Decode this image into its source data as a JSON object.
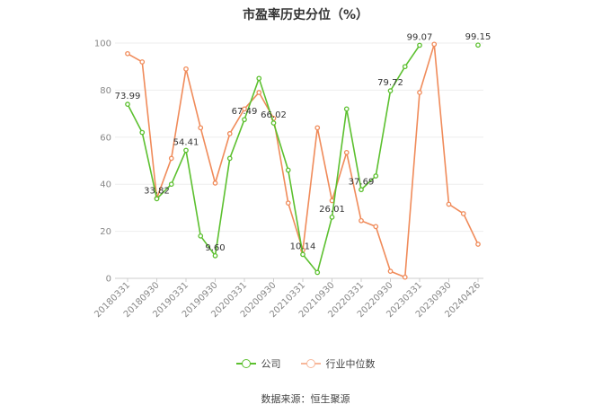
{
  "chart_data": {
    "type": "line",
    "title": "市盈率历史分位（%）",
    "ylim": [
      0,
      100
    ],
    "yticks": [
      0,
      20,
      40,
      60,
      80,
      100
    ],
    "grid": true,
    "legend_position": "bottom",
    "x_tick_labels": [
      "20180331",
      "20180930",
      "20190331",
      "20190930",
      "20200331",
      "20200930",
      "20210331",
      "20210930",
      "20220331",
      "20220930",
      "20230331",
      "20230930",
      "20240426"
    ],
    "x": [
      "20180331",
      "20180630",
      "20180930",
      "20181231",
      "20190331",
      "20190630",
      "20190930",
      "20191231",
      "20200331",
      "20200630",
      "20200930",
      "20201231",
      "20210331",
      "20210630",
      "20210930",
      "20211231",
      "20220331",
      "20220630",
      "20220930",
      "20221231",
      "20230331",
      "20230630",
      "20230930",
      "20231231",
      "20240426"
    ],
    "series": [
      {
        "name": "公司",
        "color": "#5cc02f",
        "values": [
          73.99,
          62,
          33.82,
          40,
          54.41,
          18,
          9.6,
          51,
          67.49,
          85,
          66.02,
          46,
          10.14,
          2.5,
          26.01,
          72,
          37.69,
          43.5,
          79.72,
          90,
          99.07,
          null,
          null,
          null,
          99.15
        ]
      },
      {
        "name": "行业中位数",
        "color": "#f08b5a",
        "values": [
          95.5,
          92,
          34,
          51,
          89,
          64,
          40.5,
          61.5,
          72,
          79,
          68,
          32,
          12,
          64,
          33,
          53.5,
          24.5,
          22,
          3,
          0.5,
          79,
          99.5,
          31.5,
          27.5,
          14.5
        ]
      }
    ],
    "data_labels": [
      {
        "x": "20180331",
        "series": 0,
        "text": "73.99"
      },
      {
        "x": "20180930",
        "series": 0,
        "text": "33.82"
      },
      {
        "x": "20190331",
        "series": 0,
        "text": "54.41"
      },
      {
        "x": "20190930",
        "series": 0,
        "text": "9.60"
      },
      {
        "x": "20200331",
        "series": 0,
        "text": "67.49"
      },
      {
        "x": "20200930",
        "series": 0,
        "text": "66.02"
      },
      {
        "x": "20210331",
        "series": 0,
        "text": "10.14"
      },
      {
        "x": "20210930",
        "series": 0,
        "text": "26.01"
      },
      {
        "x": "20220331",
        "series": 0,
        "text": "37.69"
      },
      {
        "x": "20220930",
        "series": 0,
        "text": "79.72"
      },
      {
        "x": "20230331",
        "series": 0,
        "text": "99.07"
      },
      {
        "x": "20240426",
        "series": 0,
        "text": "99.15"
      }
    ]
  },
  "legend": {
    "company": "公司",
    "industry": "行业中位数"
  },
  "source": "数据来源：恒生聚源"
}
